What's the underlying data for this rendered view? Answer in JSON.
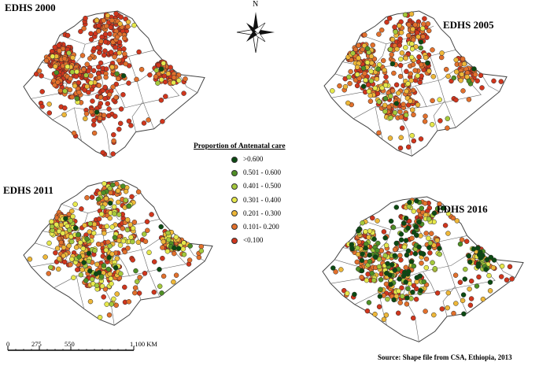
{
  "maps": [
    {
      "title": "EDHS 2000",
      "category_counts": [
        3,
        3,
        6,
        10,
        20,
        130,
        340
      ]
    },
    {
      "title": "EDHS 2005",
      "category_counts": [
        6,
        8,
        14,
        25,
        60,
        160,
        170
      ]
    },
    {
      "title": "EDHS 2011",
      "category_counts": [
        14,
        20,
        40,
        70,
        90,
        170,
        160
      ]
    },
    {
      "title": "EDHS 2016",
      "category_counts": [
        80,
        40,
        40,
        50,
        70,
        110,
        110
      ]
    }
  ],
  "legend": {
    "title": "Proportion of Antenatal care",
    "items": [
      {
        "label": ">0.600",
        "color": "#0c4a12"
      },
      {
        "label": "0.501 - 0.600",
        "color": "#4f8f25"
      },
      {
        "label": "0.401 - 0.500",
        "color": "#a4c83c"
      },
      {
        "label": "0.301 - 0.400",
        "color": "#e6e84c"
      },
      {
        "label": "0.201 - 0.300",
        "color": "#eeb738"
      },
      {
        "label": "0.101- 0.200",
        "color": "#e2702c"
      },
      {
        "label": "<0.100",
        "color": "#d0361d"
      }
    ]
  },
  "compass": {
    "label": "N"
  },
  "scale_bar": {
    "ticks": [
      "0",
      "275",
      "550",
      "1,100 KM"
    ]
  },
  "source": "Source: Shape file from CSA, Ethiopia, 2013"
}
